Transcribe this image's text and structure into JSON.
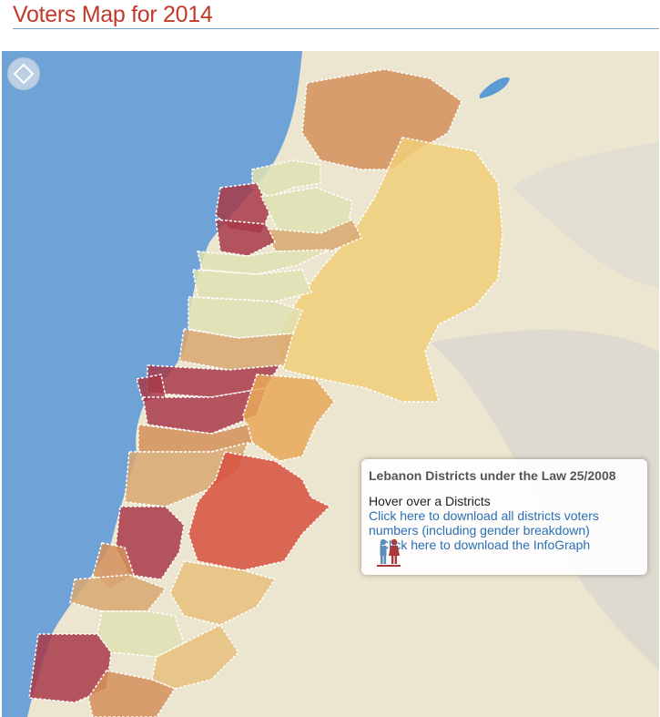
{
  "page": {
    "title": "Voters Map for 2014"
  },
  "map": {
    "colors": {
      "sea": "#6fa3d8",
      "land": "#ece5cf",
      "dark_red": "#a83a4a",
      "red": "#d7503e",
      "orange": "#d4915c",
      "light_orange": "#e9a95a",
      "tan": "#d9a872",
      "light_tan": "#e7c17c",
      "yellow": "#f1cf7a",
      "pale": "#dfe2b3",
      "border": "#ffffff"
    }
  },
  "info_box": {
    "title": "Lebanon Districts under the Law 25/2008",
    "hint": "Hover over a Districts",
    "download_voters_link": "Click here to download all districts voters numbers (including gender breakdown)",
    "infograph_link": "Click here to download the InfoGraph"
  },
  "icons": {
    "nav": "pan-arrows-icon",
    "people": "male-female-icon"
  }
}
